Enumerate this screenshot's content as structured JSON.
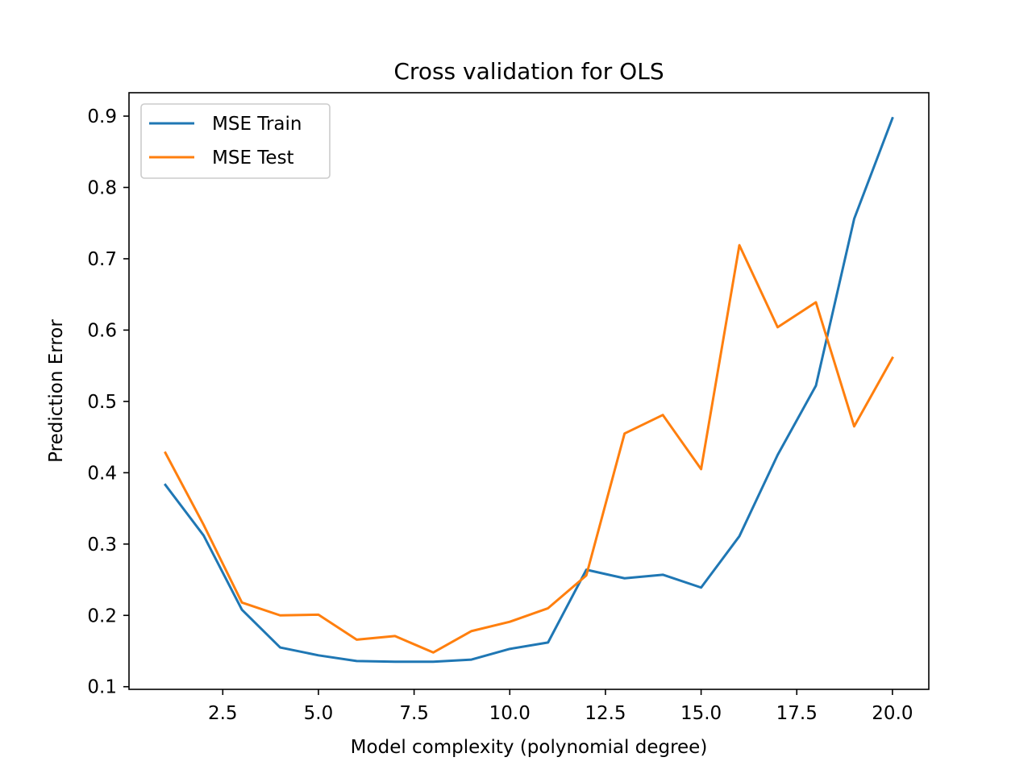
{
  "chart_data": {
    "type": "line",
    "title": "Cross validation for OLS",
    "xlabel": "Model complexity (polynomial degree)",
    "ylabel": "Prediction Error",
    "x": [
      1,
      2,
      3,
      4,
      5,
      6,
      7,
      8,
      9,
      10,
      11,
      12,
      13,
      14,
      15,
      16,
      17,
      18,
      19,
      20
    ],
    "xlim": [
      0.05,
      20.95
    ],
    "ylim": [
      0.0963,
      0.9328
    ],
    "xticks": [
      2.5,
      5.0,
      7.5,
      10.0,
      12.5,
      15.0,
      17.5,
      20.0
    ],
    "xtick_labels": [
      "2.5",
      "5.0",
      "7.5",
      "10.0",
      "12.5",
      "15.0",
      "17.5",
      "20.0"
    ],
    "yticks": [
      0.1,
      0.2,
      0.3,
      0.4,
      0.5,
      0.6,
      0.7,
      0.8,
      0.9
    ],
    "ytick_labels": [
      "0.1",
      "0.2",
      "0.3",
      "0.4",
      "0.5",
      "0.6",
      "0.7",
      "0.8",
      "0.9"
    ],
    "grid": false,
    "legend_position": "upper-left",
    "series": [
      {
        "name": "MSE Train",
        "color": "#1f77b4",
        "values": [
          0.383,
          0.312,
          0.208,
          0.155,
          0.144,
          0.136,
          0.135,
          0.135,
          0.138,
          0.153,
          0.162,
          0.264,
          0.252,
          0.257,
          0.239,
          0.311,
          0.425,
          0.522,
          0.756,
          0.897
        ]
      },
      {
        "name": "MSE Test",
        "color": "#ff7f0e",
        "values": [
          0.428,
          0.327,
          0.218,
          0.2,
          0.201,
          0.166,
          0.171,
          0.148,
          0.178,
          0.191,
          0.21,
          0.256,
          0.455,
          0.481,
          0.405,
          0.719,
          0.604,
          0.639,
          0.465,
          0.561
        ]
      }
    ]
  }
}
